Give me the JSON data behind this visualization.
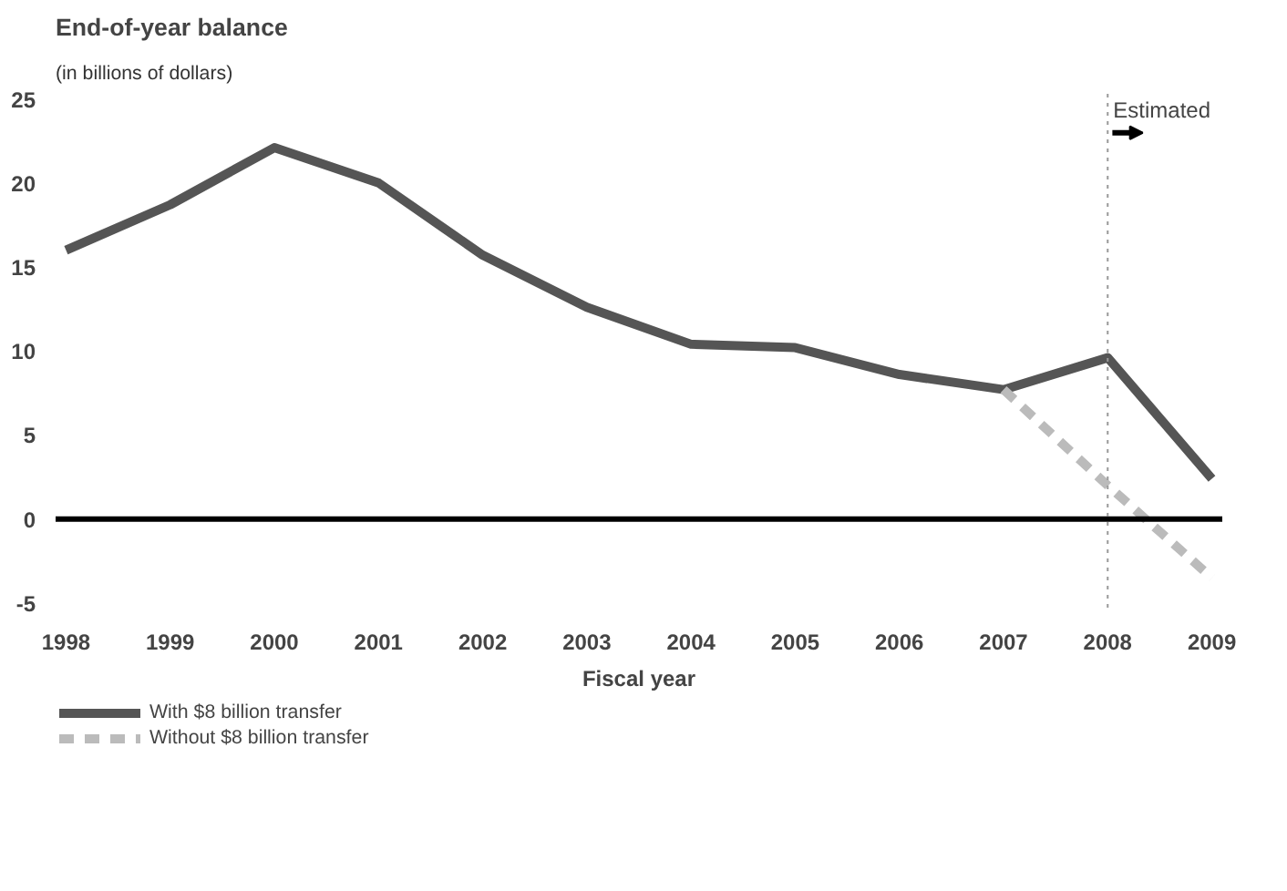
{
  "chart_data": {
    "type": "line",
    "title": "End-of-year balance",
    "subtitle": "(in billions of dollars)",
    "xlabel": "Fiscal year",
    "x": [
      1998,
      1999,
      2000,
      2001,
      2002,
      2003,
      2004,
      2005,
      2006,
      2007,
      2008,
      2009
    ],
    "series": [
      {
        "name": "With $8 billion transfer",
        "color": "#555555",
        "line_style": "solid",
        "values": [
          16.0,
          18.7,
          22.1,
          20.0,
          15.7,
          12.6,
          10.4,
          10.2,
          8.6,
          7.7,
          9.6,
          2.4
        ]
      },
      {
        "name": "Without $8 billion transfer",
        "color": "#bbbbbb",
        "line_style": "dashed",
        "x": [
          2007,
          2008,
          2009
        ],
        "values": [
          7.7,
          2.0,
          -3.5
        ]
      }
    ],
    "xlim": [
      1997.9,
      2009.1
    ],
    "ylim": [
      -5.6,
      25.3
    ],
    "xticks": [
      1998,
      1999,
      2000,
      2001,
      2002,
      2003,
      2004,
      2005,
      2006,
      2007,
      2008,
      2009
    ],
    "yticks": [
      -5,
      0,
      5,
      10,
      15,
      20,
      25
    ],
    "ref_lines": [
      {
        "axis": "y",
        "value": 0,
        "label": null,
        "color": "#000000",
        "line_style": "solid"
      },
      {
        "axis": "x",
        "value": 2008,
        "label": "Estimated",
        "color": "#999999",
        "line_style": "dotted"
      }
    ],
    "grid": false,
    "legend": "bottom",
    "marker": "none"
  }
}
